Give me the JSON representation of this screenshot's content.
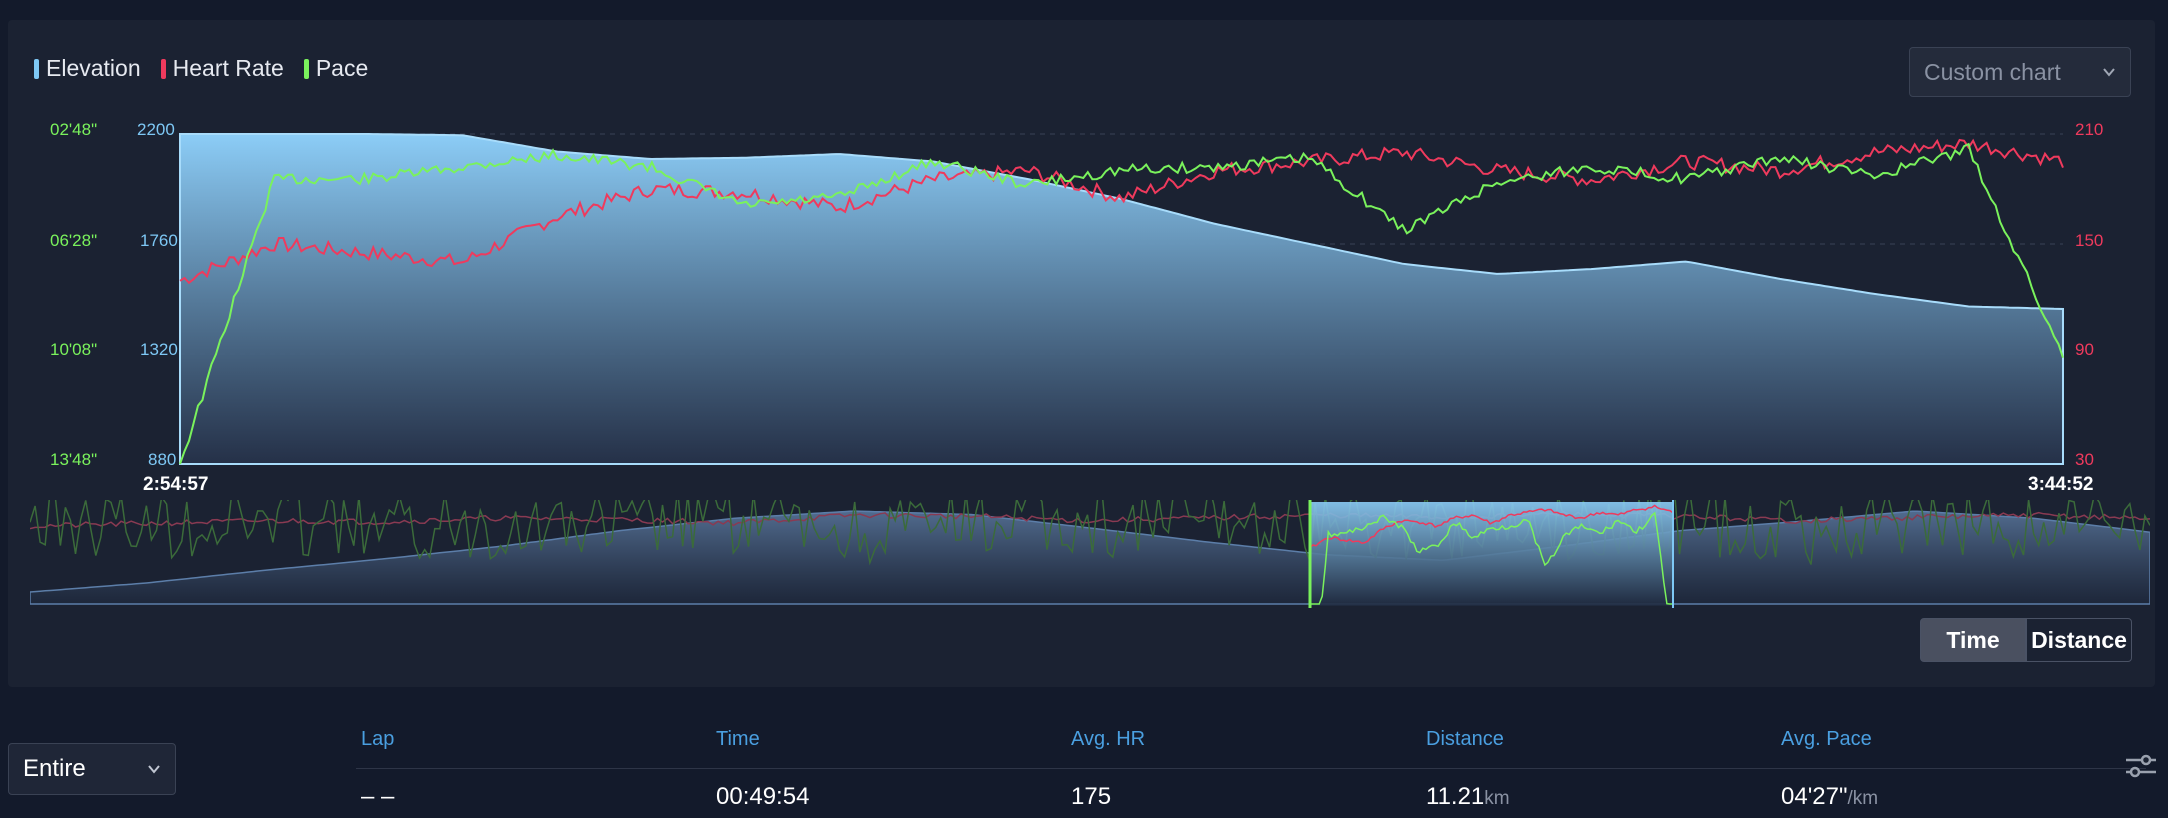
{
  "legend": [
    {
      "label": "Elevation",
      "color": "#7ec8f5"
    },
    {
      "label": "Heart Rate",
      "color": "#ef3a5d"
    },
    {
      "label": "Pace",
      "color": "#7af25c"
    }
  ],
  "custom_chart": {
    "label": "Custom chart"
  },
  "chart_data": {
    "type": "line",
    "x_start": "2:54:57",
    "x_end": "3:44:52",
    "axes": {
      "pace_ticks": [
        "02'48\"",
        "06'28\"",
        "10'08\"",
        "13'48\""
      ],
      "elevation_ticks": [
        "2200",
        "1760",
        "1320",
        "880"
      ],
      "hr_ticks": [
        "210",
        "150",
        "90",
        "30"
      ],
      "elevation_range": [
        880,
        2200
      ],
      "hr_range": [
        30,
        210
      ],
      "grid": true
    },
    "x_minutes": [
      0,
      2.5,
      5,
      7.5,
      10,
      12.5,
      15,
      17.5,
      20,
      22.5,
      25,
      27.5,
      30,
      32.5,
      35,
      37.5,
      40,
      42.5,
      45,
      47.5,
      49.9
    ],
    "series": [
      {
        "name": "Elevation",
        "color": "#7ec8f5",
        "values": [
          2200,
          2200,
          2200,
          2195,
          2130,
          2100,
          2105,
          2120,
          2090,
          2020,
          1940,
          1840,
          1760,
          1680,
          1640,
          1660,
          1690,
          1620,
          1560,
          1510,
          1500
        ]
      },
      {
        "name": "Heart Rate",
        "color": "#ef3a5d",
        "values": [
          130,
          150,
          145,
          140,
          165,
          180,
          178,
          170,
          185,
          190,
          175,
          190,
          195,
          200,
          190,
          185,
          195,
          190,
          200,
          205,
          195
        ]
      },
      {
        "name": "Pace",
        "color": "#7af25c",
        "values": [
          13.8,
          4.3,
          4.3,
          3.9,
          3.5,
          3.9,
          5.2,
          4.9,
          3.7,
          4.5,
          4.0,
          3.9,
          3.6,
          6.0,
          4.4,
          3.9,
          4.3,
          3.6,
          4.2,
          3.3,
          10.2
        ]
      }
    ]
  },
  "toggle": {
    "time": "Time",
    "distance": "Distance"
  },
  "lap_select": {
    "label": "Entire"
  },
  "table": {
    "headers": [
      "Lap",
      "Time",
      "Avg. HR",
      "Distance",
      "Avg. Pace"
    ],
    "row": {
      "lap": "– –",
      "time": "00:49:54",
      "avg_hr": "175",
      "distance": "11.21",
      "distance_unit": "km",
      "avg_pace": "04'27\"",
      "pace_unit": "/km"
    }
  }
}
